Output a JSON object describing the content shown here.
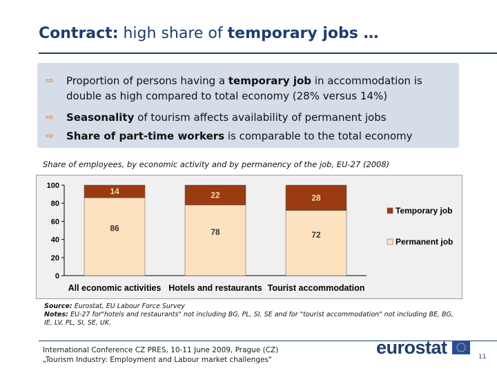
{
  "slide": {
    "title_part1": "Contract:",
    "title_part2": " high share of ",
    "title_part3": "temporary jobs …"
  },
  "bullets": [
    {
      "pre": "Proportion of persons having a ",
      "bold": "temporary job",
      "post": " in accommodation is double as high compared to total economy (28% versus 14%)"
    },
    {
      "pre": "",
      "bold": "Seasonality",
      "post": " of tourism affects availability of permanent jobs"
    },
    {
      "pre": "",
      "bold": "Share of part-time workers",
      "post": " is comparable to the total economy"
    }
  ],
  "bullet_icon": "arrow-right-icon",
  "chart_caption": "Share of employees, by economic activity and by permanency of the job, EU-27 (2008)",
  "chart_data": {
    "type": "bar",
    "stacked": true,
    "categories": [
      "All economic activities",
      "Hotels and restaurants",
      "Tourist accommodation"
    ],
    "series": [
      {
        "name": "Permanent job",
        "values": [
          86,
          78,
          72
        ],
        "color": "#fde2c0"
      },
      {
        "name": "Temporary job",
        "values": [
          14,
          22,
          28
        ],
        "color": "#9a3b12"
      }
    ],
    "ylim": [
      0,
      100
    ],
    "yticks": [
      "0",
      "20",
      "40",
      "60",
      "80",
      "100"
    ],
    "legend_placement": "right",
    "grid": false
  },
  "source": {
    "label": "Source:",
    "text": " Eurostat, EU Labour Force Survey",
    "notes_label": "Notes:",
    "notes_text": " EU-27 for\"hotels and restaurants\" not including BG, PL, SI, SE and for \"tourist accommodation\" not including BE, BG, IE, LV, PL, SI, SE, UK."
  },
  "footer": {
    "line1": "International Conference CZ PRES, 10-11 June 2009, Prague (CZ)",
    "line2": "„Tourism Industry: Employment and Labour market challenges\""
  },
  "logo": {
    "text": "eurostat"
  },
  "page_number": "11"
}
